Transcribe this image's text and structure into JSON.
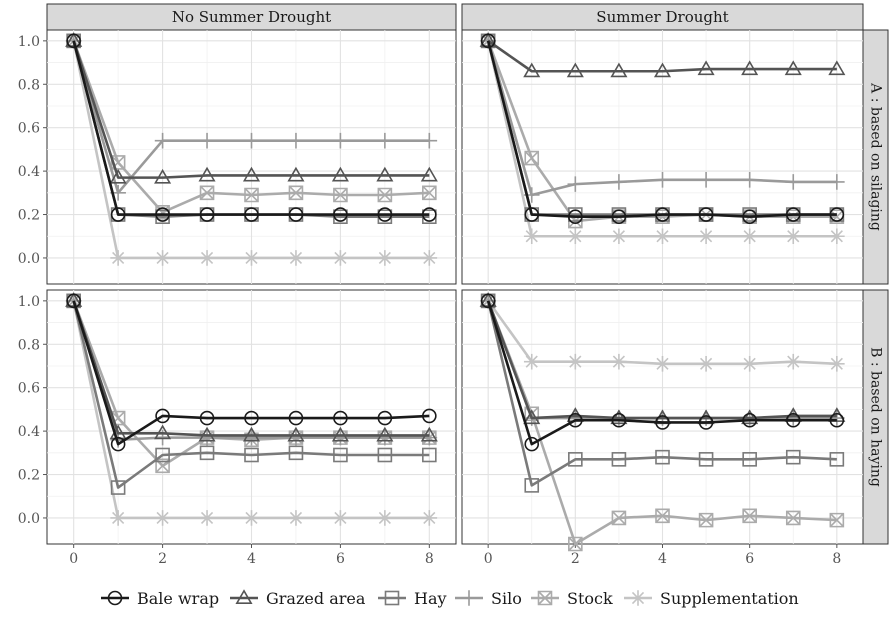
{
  "chart_data": {
    "type": "line",
    "facet_columns": [
      "No Summer Drought",
      "Summer Drought"
    ],
    "facet_rows": [
      "A : based on silaging",
      "B : based on haying"
    ],
    "x": [
      0,
      1,
      2,
      3,
      4,
      5,
      6,
      7,
      8
    ],
    "x_ticks": [
      "0",
      "2",
      "4",
      "6",
      "8"
    ],
    "y_ticks": [
      "0.0",
      "0.2",
      "0.4",
      "0.6",
      "0.8",
      "1.0"
    ],
    "xlim": [
      -0.6,
      8.6
    ],
    "ylim": [
      -0.12,
      1.05
    ],
    "grid": true,
    "legend_position": "bottom",
    "series": [
      {
        "name": "Bale wrap",
        "color": "#1a1a1a",
        "marker": "circle"
      },
      {
        "name": "Grazed area",
        "color": "#545454",
        "marker": "triangle"
      },
      {
        "name": "Hay",
        "color": "#7a7a7a",
        "marker": "square"
      },
      {
        "name": "Silo",
        "color": "#9a9a9a",
        "marker": "plus"
      },
      {
        "name": "Stock",
        "color": "#ababab",
        "marker": "square-x"
      },
      {
        "name": "Supplementation",
        "color": "#c4c4c4",
        "marker": "asterisk"
      }
    ],
    "panels": [
      {
        "row": 0,
        "col": 0,
        "values": {
          "Bale wrap": [
            1.0,
            0.2,
            0.2,
            0.2,
            0.2,
            0.2,
            0.2,
            0.2,
            0.2
          ],
          "Grazed area": [
            1.0,
            0.37,
            0.37,
            0.38,
            0.38,
            0.38,
            0.38,
            0.38,
            0.38
          ],
          "Hay": [
            1.0,
            0.2,
            0.19,
            0.2,
            0.2,
            0.2,
            0.19,
            0.19,
            0.19
          ],
          "Silo": [
            1.0,
            0.3,
            0.54,
            0.54,
            0.54,
            0.54,
            0.54,
            0.54,
            0.54
          ],
          "Stock": [
            1.0,
            0.44,
            0.21,
            0.3,
            0.29,
            0.3,
            0.29,
            0.29,
            0.3
          ],
          "Supplementation": [
            1.0,
            0.0,
            0.0,
            0.0,
            0.0,
            0.0,
            0.0,
            0.0,
            0.0
          ]
        }
      },
      {
        "row": 0,
        "col": 1,
        "values": {
          "Bale wrap": [
            1.0,
            0.2,
            0.19,
            0.19,
            0.2,
            0.2,
            0.19,
            0.2,
            0.2
          ],
          "Grazed area": [
            1.0,
            0.86,
            0.86,
            0.86,
            0.86,
            0.87,
            0.87,
            0.87,
            0.87
          ],
          "Hay": [
            1.0,
            0.2,
            0.2,
            0.2,
            0.2,
            0.2,
            0.2,
            0.2,
            0.2
          ],
          "Silo": [
            1.0,
            0.29,
            0.34,
            0.35,
            0.36,
            0.36,
            0.36,
            0.35,
            0.35
          ],
          "Stock": [
            1.0,
            0.46,
            0.17,
            0.19,
            0.19,
            0.2,
            0.19,
            0.19,
            0.19
          ],
          "Supplementation": [
            1.0,
            0.1,
            0.1,
            0.1,
            0.1,
            0.1,
            0.1,
            0.1,
            0.1
          ]
        }
      },
      {
        "row": 1,
        "col": 0,
        "values": {
          "Bale wrap": [
            1.0,
            0.34,
            0.47,
            0.46,
            0.46,
            0.46,
            0.46,
            0.46,
            0.47
          ],
          "Grazed area": [
            1.0,
            0.39,
            0.39,
            0.38,
            0.38,
            0.38,
            0.38,
            0.38,
            0.38
          ],
          "Hay": [
            1.0,
            0.14,
            0.29,
            0.3,
            0.29,
            0.3,
            0.29,
            0.29,
            0.29
          ],
          "Silo": [
            1.0,
            0.36,
            0.37,
            0.37,
            0.37,
            0.37,
            0.37,
            0.37,
            0.37
          ],
          "Stock": [
            1.0,
            0.46,
            0.24,
            0.37,
            0.36,
            0.37,
            0.37,
            0.37,
            0.37
          ],
          "Supplementation": [
            1.0,
            0.0,
            0.0,
            0.0,
            0.0,
            0.0,
            0.0,
            0.0,
            0.0
          ]
        }
      },
      {
        "row": 1,
        "col": 1,
        "values": {
          "Bale wrap": [
            1.0,
            0.34,
            0.45,
            0.45,
            0.44,
            0.44,
            0.45,
            0.45,
            0.45
          ],
          "Grazed area": [
            1.0,
            0.46,
            0.47,
            0.46,
            0.46,
            0.46,
            0.46,
            0.47,
            0.47
          ],
          "Hay": [
            1.0,
            0.15,
            0.27,
            0.27,
            0.28,
            0.27,
            0.27,
            0.28,
            0.27
          ],
          "Silo": [
            1.0,
            0.46,
            0.46,
            0.46,
            0.46,
            0.46,
            0.46,
            0.46,
            0.46
          ],
          "Stock": [
            1.0,
            0.48,
            -0.12,
            0.0,
            0.01,
            -0.01,
            0.01,
            0.0,
            -0.01
          ],
          "Supplementation": [
            1.0,
            0.72,
            0.72,
            0.72,
            0.71,
            0.71,
            0.71,
            0.72,
            0.71
          ]
        }
      }
    ]
  }
}
